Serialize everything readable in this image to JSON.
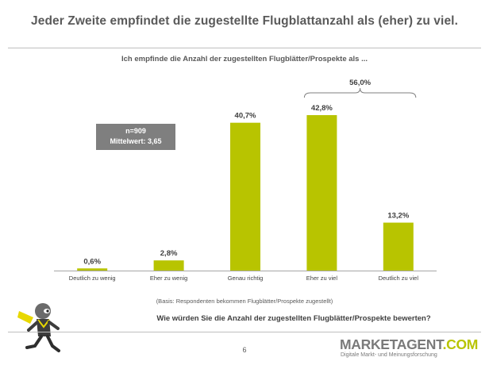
{
  "header": {
    "title": "Jeder Zweite empfindet die zugestellte Flugblattanzahl als (eher) zu viel."
  },
  "chart_data": {
    "type": "bar",
    "title": "Ich empfinde die Anzahl der zugestellten Flugblätter/Prospekte als ...",
    "categories": [
      "Deutlich zu wenig",
      "Eher zu wenig",
      "Genau richtig",
      "Eher zu viel",
      "Deutlich zu viel"
    ],
    "values": [
      0.6,
      2.8,
      40.7,
      42.8,
      13.2
    ],
    "value_labels": [
      "0,6%",
      "2,8%",
      "40,7%",
      "42,8%",
      "13,2%"
    ],
    "bracket": {
      "from": "Eher zu viel",
      "to": "Deutlich zu viel",
      "label": "56,0%"
    },
    "ylim": [
      0,
      45
    ],
    "grid": false,
    "bar_color": "#b8c400",
    "xlabel": "",
    "ylabel": ""
  },
  "stats_box": {
    "n": "n=909",
    "mean": "Mittelwert: 3,65"
  },
  "footnote": "(Basis: Respondenten bekommen Flugblätter/Prospekte zugestellt)",
  "question": "Wie würden Sie die Anzahl der zugestellten Flugblätter/Prospekte bewerten?",
  "page_number": "6",
  "brand": {
    "name_main": "MARKETAGENT",
    "name_suffix": ".COM",
    "tagline": "Digitale Markt- und Meinungsforschung",
    "accent_color": "#b8c400"
  }
}
